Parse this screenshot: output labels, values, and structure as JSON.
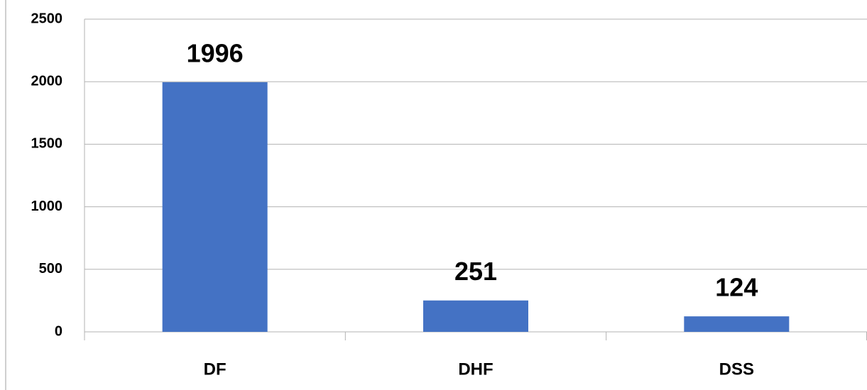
{
  "chart_data": {
    "type": "bar",
    "categories": [
      "DF",
      "DHF",
      "DSS"
    ],
    "values": [
      1996,
      251,
      124
    ],
    "color": "#4472c4",
    "ylim": [
      0,
      2500
    ],
    "yticks": [
      0,
      500,
      1000,
      1500,
      2000,
      2500
    ],
    "grid": true
  }
}
